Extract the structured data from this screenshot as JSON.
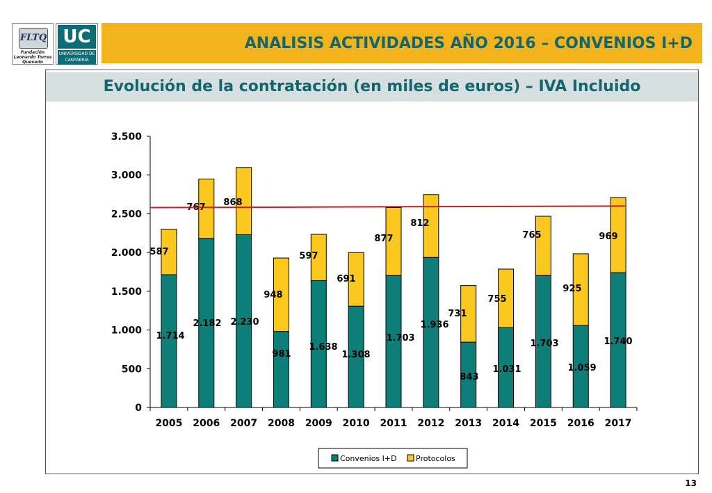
{
  "header": {
    "title": "ANALISIS ACTIVIDADES AÑO 2016 – CONVENIOS I+D",
    "fltq_logo_text": "FLTQ",
    "fltq_logo_sub": "Fundación Leonardo Torres Quevedo",
    "uc_logo_text": "UC",
    "uc_logo_sub": "UNIVERSIDAD DE CANTABRIA"
  },
  "subtitle": "Evolución de la contratación (en miles de euros) – IVA Incluido",
  "page_number": "13",
  "colors": {
    "convenios": "#0e7f78",
    "protocolos": "#fac81e",
    "reference_line": "#c0201e",
    "title_bar": "#f2b31c",
    "title_text": "#12666e"
  },
  "chart_data": {
    "type": "bar",
    "stacked": true,
    "categories": [
      "2005",
      "2006",
      "2007",
      "2008",
      "2009",
      "2010",
      "2011",
      "2012",
      "2013",
      "2014",
      "2015",
      "2016",
      "2017"
    ],
    "series": [
      {
        "name": "Convenios I+D",
        "values": [
          1714,
          2182,
          2230,
          981,
          1638,
          1308,
          1703,
          1936,
          843,
          1031,
          1703,
          1059,
          1740
        ],
        "labels": [
          "1.714",
          "2.182",
          "2.230",
          "981",
          "1.638",
          "1.308",
          "1.703",
          "1.936",
          "843",
          "1.031",
          "1.703",
          "1.059",
          "1.740"
        ]
      },
      {
        "name": "Protocolos",
        "values": [
          587,
          767,
          868,
          948,
          597,
          691,
          877,
          812,
          731,
          755,
          765,
          925,
          969
        ],
        "labels": [
          "587",
          "767",
          "868",
          "948",
          "597",
          "691",
          "877",
          "812",
          "731",
          "755",
          "765",
          "925",
          "969"
        ]
      }
    ],
    "reference_line": {
      "start_value": 2580,
      "end_value": 2600
    },
    "ylim": [
      0,
      3500
    ],
    "yticks": [
      0,
      500,
      1000,
      1500,
      2000,
      2500,
      3000,
      3500
    ],
    "ytick_labels": [
      "0",
      "500",
      "1.000",
      "1.500",
      "2.000",
      "2.500",
      "3.000",
      "3.500"
    ],
    "legend_position": "bottom-center",
    "title": "",
    "xlabel": "",
    "ylabel": ""
  }
}
